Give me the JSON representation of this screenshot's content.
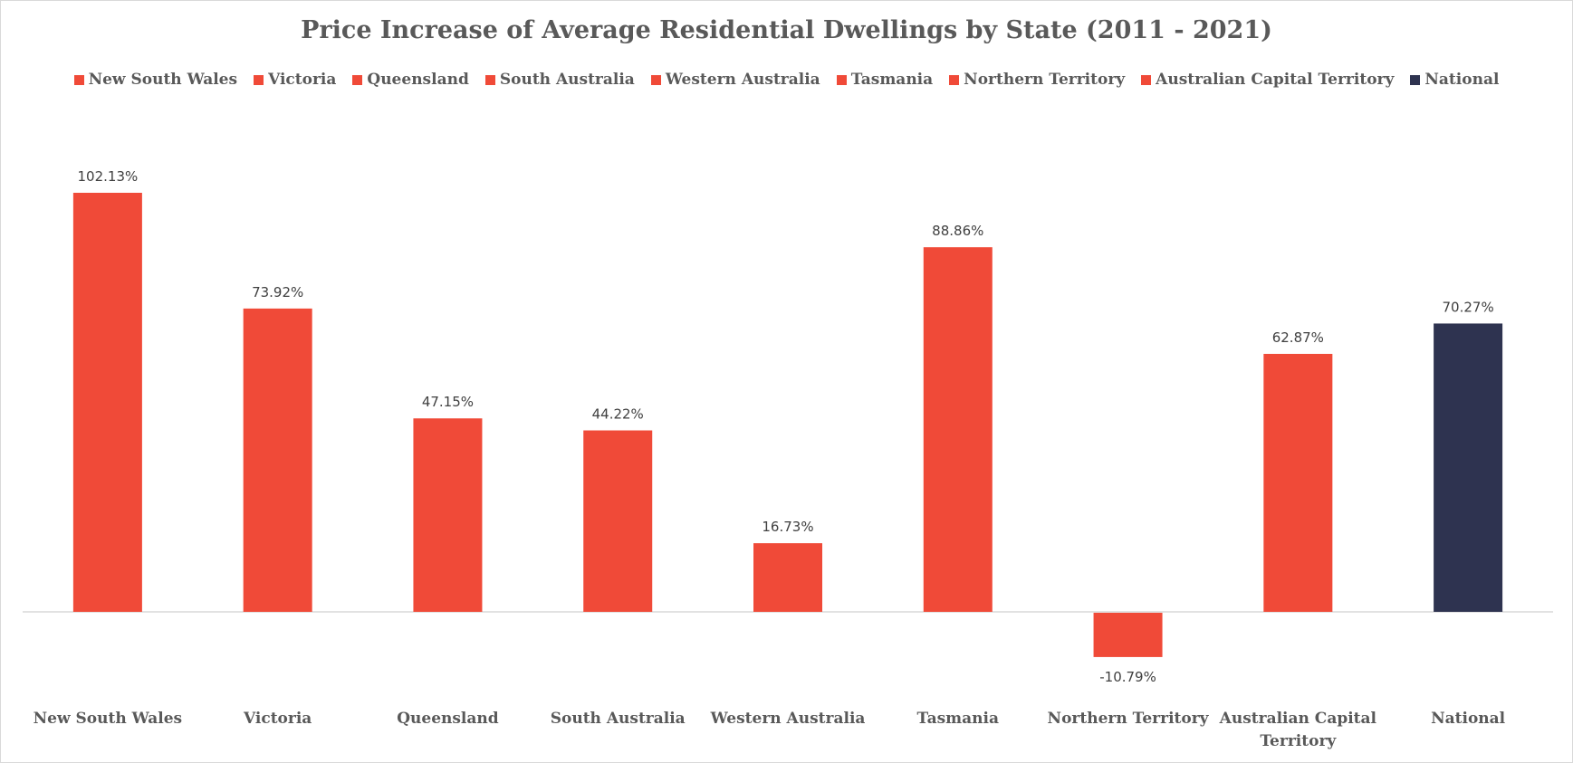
{
  "chart_data": {
    "type": "bar",
    "title": "Price Increase of Average Residential Dwellings by State (2011 - 2021)",
    "xlabel": "",
    "ylabel": "",
    "ylim": [
      -15,
      110
    ],
    "grid": false,
    "legend_position": "top",
    "categories": [
      "New South Wales",
      "Victoria",
      "Queensland",
      "South Australia",
      "Western Australia",
      "Tasmania",
      "Northern Territory",
      "Australian Capital Territory",
      "National"
    ],
    "category_display_lines": [
      [
        "New South Wales"
      ],
      [
        "Victoria"
      ],
      [
        "Queensland"
      ],
      [
        "South Australia"
      ],
      [
        "Western Australia"
      ],
      [
        "Tasmania"
      ],
      [
        "Northern Territory"
      ],
      [
        "Australian Capital",
        "Territory"
      ],
      [
        "National"
      ]
    ],
    "values": [
      102.13,
      73.92,
      47.15,
      44.22,
      16.73,
      88.86,
      -10.79,
      62.87,
      70.27
    ],
    "value_labels": [
      "102.13%",
      "73.92%",
      "47.15%",
      "44.22%",
      "16.73%",
      "88.86%",
      "-10.79%",
      "62.87%",
      "70.27%"
    ],
    "colors": [
      "#f04a38",
      "#f04a38",
      "#f04a38",
      "#f04a38",
      "#f04a38",
      "#f04a38",
      "#f04a38",
      "#f04a38",
      "#2e3350"
    ],
    "legend": [
      {
        "label": "New South Wales",
        "color": "#f04a38"
      },
      {
        "label": "Victoria",
        "color": "#f04a38"
      },
      {
        "label": "Queensland",
        "color": "#f04a38"
      },
      {
        "label": "South Australia",
        "color": "#f04a38"
      },
      {
        "label": "Western Australia",
        "color": "#f04a38"
      },
      {
        "label": "Tasmania",
        "color": "#f04a38"
      },
      {
        "label": "Northern Territory",
        "color": "#f04a38"
      },
      {
        "label": "Australian Capital Territory",
        "color": "#f04a38"
      },
      {
        "label": "National",
        "color": "#2e3350"
      }
    ]
  }
}
